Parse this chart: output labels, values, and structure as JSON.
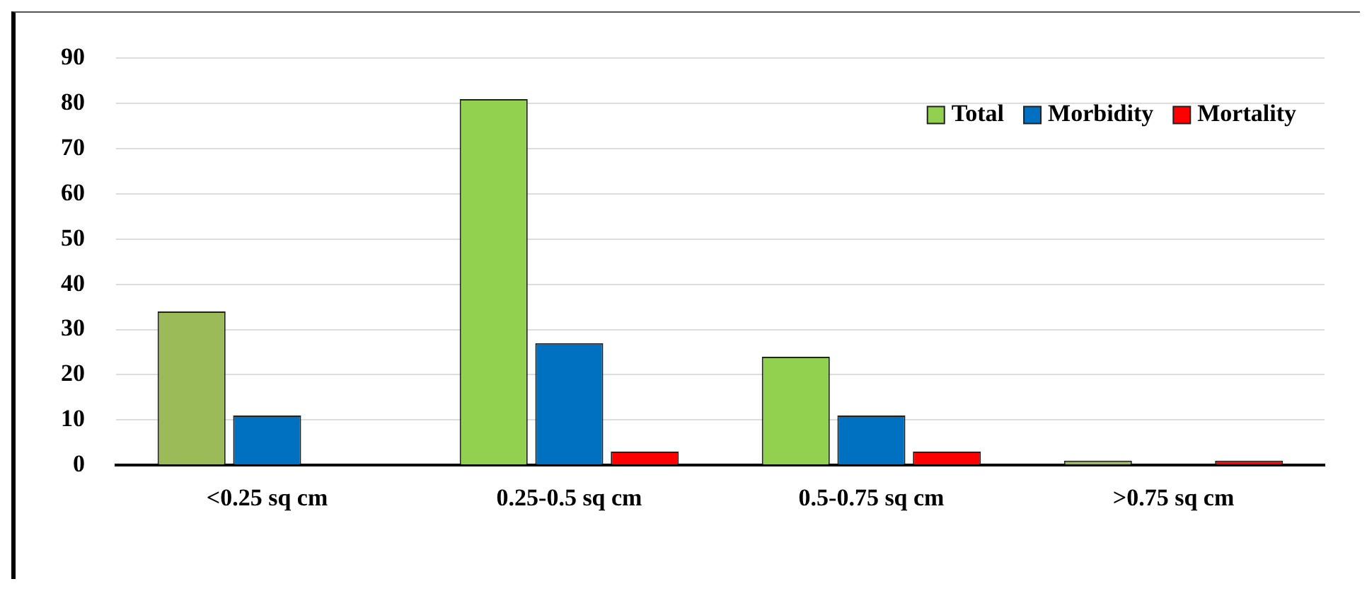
{
  "chart_data": {
    "type": "bar",
    "categories": [
      "<0.25 sq cm",
      "0.25-0.5 sq cm",
      "0.5-0.75 sq cm",
      ">0.75 sq cm"
    ],
    "series": [
      {
        "name": "Total",
        "color": "#92d050",
        "colors": [
          "#9bbb59",
          "#92d050",
          "#92d050",
          "#9bbb59"
        ],
        "values": [
          34,
          81,
          24,
          1
        ]
      },
      {
        "name": "Morbidity",
        "color": "#0070c0",
        "values": [
          11,
          27,
          11,
          0
        ]
      },
      {
        "name": "Mortality",
        "color": "#ff0000",
        "values": [
          0,
          3,
          3,
          1
        ]
      }
    ],
    "ylim": [
      0,
      90
    ],
    "yticks": [
      0,
      10,
      20,
      30,
      40,
      50,
      60,
      70,
      80,
      90
    ],
    "grid": "y",
    "legend": "top right"
  }
}
